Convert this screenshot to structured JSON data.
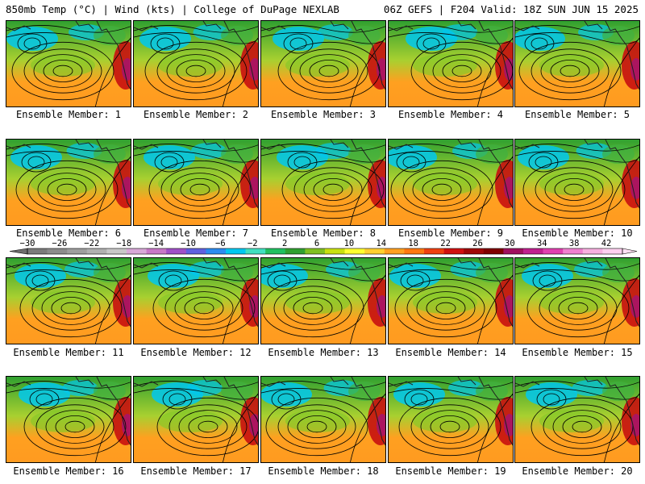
{
  "header": {
    "left": "850mb Temp (°C) | Wind (kts) | College of DuPage NEXLAB",
    "right": "06Z GEFS | F204 Valid: 18Z SUN JUN 15 2025"
  },
  "panel_label_prefix": "Ensemble Member: ",
  "members": [
    1,
    2,
    3,
    4,
    5,
    6,
    7,
    8,
    9,
    10,
    11,
    12,
    13,
    14,
    15,
    16,
    17,
    18,
    19,
    20
  ],
  "colorbar": {
    "ticks": [
      "−30",
      "−26",
      "−22",
      "−18",
      "−14",
      "−10",
      "−6",
      "−2",
      "2",
      "6",
      "10",
      "14",
      "18",
      "22",
      "26",
      "30",
      "34",
      "38",
      "42"
    ],
    "colors": [
      "#7b7b7b",
      "#8c8c8c",
      "#9e9e9e",
      "#b0b0b0",
      "#c8c8c8",
      "#d8a8d8",
      "#c878c8",
      "#a050c8",
      "#6060e0",
      "#2c8cf0",
      "#00c8f0",
      "#40e0c0",
      "#20c060",
      "#30a030",
      "#80c020",
      "#c8e010",
      "#ffff30",
      "#ffd030",
      "#ffa020",
      "#ff7810",
      "#f04010",
      "#d01010",
      "#a00808",
      "#800000",
      "#a01060",
      "#c02090",
      "#e040b0",
      "#f080d0",
      "#f8b0e0",
      "#ffd0f0"
    ],
    "range": [
      -30,
      44
    ]
  },
  "colors": {
    "cold": "#00c8f0",
    "cool": "#30a030",
    "warm": "#ffa020",
    "hot": "#c81010"
  }
}
